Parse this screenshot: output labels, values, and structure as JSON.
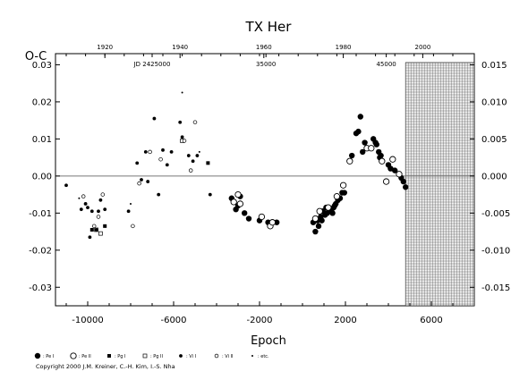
{
  "chart_data": {
    "type": "scatter",
    "title": "TX Her",
    "xlabel": "Epoch",
    "ylabel": "O-C",
    "xlim": [
      -11500,
      8000
    ],
    "ylim": [
      -0.035,
      0.033
    ],
    "right_ylim": [
      -0.0175,
      0.0165
    ],
    "x_ticks": [
      -10000,
      -6000,
      -2000,
      2000,
      6000
    ],
    "x_tick_labels": [
      "-10000",
      "-6000",
      "-2000",
      "2000",
      "6000"
    ],
    "y_ticks": [
      -0.03,
      -0.02,
      -0.01,
      0.0,
      0.01,
      0.02,
      0.03
    ],
    "y_tick_labels": [
      "-0.03",
      "-0.02",
      "-0.01",
      "0.00",
      "0.01",
      "0.02",
      "0.03"
    ],
    "right_ticks": [
      -0.015,
      -0.01,
      -0.005,
      0.0,
      0.005,
      0.01,
      0.015
    ],
    "right_tick_labels": [
      "-0.015",
      "-0.010",
      "-0.005",
      "0.000",
      "0.005",
      "0.010",
      "0.015"
    ],
    "year_ticks": [
      -9200,
      -5700,
      -1800,
      1900,
      5600
    ],
    "year_labels": [
      "1920",
      "1940",
      "1960",
      "1980",
      "2000"
    ],
    "jd_ticks": [
      -7000,
      -1700,
      3900
    ],
    "jd_labels": [
      "JD 2425000",
      "35000",
      "45000"
    ],
    "future_region": [
      4800,
      8000
    ],
    "zero_line": true,
    "series": [
      {
        "name": ": Pe I",
        "marker": "filled-circle-large",
        "points": [
          [
            -3300,
            -0.006
          ],
          [
            -3100,
            -0.009
          ],
          [
            -2900,
            -0.0055
          ],
          [
            -2700,
            -0.01
          ],
          [
            -2500,
            -0.0115
          ],
          [
            -3000,
            -0.008
          ],
          [
            -2000,
            -0.012
          ],
          [
            -1600,
            -0.0125
          ],
          [
            -1200,
            -0.0125
          ],
          [
            500,
            -0.0125
          ],
          [
            600,
            -0.015
          ],
          [
            750,
            -0.0135
          ],
          [
            850,
            -0.011
          ],
          [
            950,
            -0.0095
          ],
          [
            1050,
            -0.0105
          ],
          [
            1150,
            -0.01
          ],
          [
            1250,
            -0.0095
          ],
          [
            1350,
            -0.009
          ],
          [
            1450,
            -0.0085
          ],
          [
            1550,
            -0.0075
          ],
          [
            1650,
            -0.0065
          ],
          [
            1750,
            -0.006
          ],
          [
            1850,
            -0.0045
          ],
          [
            1950,
            -0.0045
          ],
          [
            900,
            -0.012
          ],
          [
            1100,
            -0.0085
          ],
          [
            1300,
            -0.0095
          ],
          [
            1500,
            -0.008
          ],
          [
            700,
            -0.012
          ],
          [
            1400,
            -0.01
          ],
          [
            2300,
            0.0055
          ],
          [
            2500,
            0.0115
          ],
          [
            2600,
            0.012
          ],
          [
            2700,
            0.016
          ],
          [
            2900,
            0.009
          ],
          [
            2800,
            0.0065
          ],
          [
            3300,
            0.01
          ],
          [
            3400,
            0.009
          ],
          [
            3450,
            0.0085
          ],
          [
            3550,
            0.0065
          ],
          [
            3650,
            0.0055
          ],
          [
            3600,
            0.005
          ],
          [
            4000,
            0.003
          ],
          [
            4100,
            0.002
          ],
          [
            4300,
            0.0015
          ],
          [
            4600,
            -0.0005
          ],
          [
            4700,
            -0.0015
          ],
          [
            4800,
            -0.003
          ]
        ]
      },
      {
        "name": ": Pe II",
        "marker": "open-circle-large",
        "points": [
          [
            -3200,
            -0.007
          ],
          [
            -3000,
            -0.005
          ],
          [
            -2900,
            -0.0075
          ],
          [
            -1900,
            -0.011
          ],
          [
            -1500,
            -0.0135
          ],
          [
            -1400,
            -0.0125
          ],
          [
            600,
            -0.0115
          ],
          [
            800,
            -0.0095
          ],
          [
            1200,
            -0.0085
          ],
          [
            1600,
            -0.0055
          ],
          [
            1900,
            -0.0025
          ],
          [
            2200,
            0.004
          ],
          [
            3000,
            0.0075
          ],
          [
            3200,
            0.0075
          ],
          [
            3700,
            0.004
          ],
          [
            3900,
            -0.0015
          ],
          [
            4200,
            0.0045
          ],
          [
            4500,
            0.0005
          ]
        ]
      },
      {
        "name": ": Pg I",
        "marker": "filled-square",
        "points": [
          [
            -9800,
            -0.0145
          ],
          [
            -9200,
            -0.0135
          ],
          [
            -4400,
            0.0035
          ]
        ]
      },
      {
        "name": ": Pg II",
        "marker": "open-square",
        "points": [
          [
            -9400,
            -0.0155
          ],
          [
            -9600,
            -0.0145
          ],
          [
            -5600,
            0.0095
          ]
        ]
      },
      {
        "name": ": Vi I",
        "marker": "filled-circle-small",
        "points": [
          [
            -11000,
            -0.0025
          ],
          [
            -10300,
            -0.009
          ],
          [
            -10100,
            -0.0075
          ],
          [
            -10000,
            -0.0085
          ],
          [
            -9800,
            -0.0095
          ],
          [
            -9500,
            -0.0095
          ],
          [
            -9900,
            -0.0165
          ],
          [
            -9600,
            -0.0145
          ],
          [
            -9400,
            -0.0065
          ],
          [
            -9200,
            -0.009
          ],
          [
            -8100,
            -0.0095
          ],
          [
            -7700,
            0.0035
          ],
          [
            -7500,
            -0.001
          ],
          [
            -7300,
            0.0065
          ],
          [
            -7200,
            -0.0015
          ],
          [
            -6900,
            0.0155
          ],
          [
            -6700,
            -0.005
          ],
          [
            -6500,
            0.007
          ],
          [
            -6300,
            0.003
          ],
          [
            -6100,
            0.0065
          ],
          [
            -5700,
            0.0145
          ],
          [
            -5600,
            0.0105
          ],
          [
            -5300,
            0.0055
          ],
          [
            -5100,
            0.004
          ],
          [
            -4900,
            0.0055
          ],
          [
            -4300,
            -0.005
          ]
        ]
      },
      {
        "name": ": Vi II",
        "marker": "open-circle-small",
        "points": [
          [
            -10200,
            -0.0055
          ],
          [
            -9700,
            -0.0135
          ],
          [
            -9500,
            -0.011
          ],
          [
            -9300,
            -0.005
          ],
          [
            -7900,
            -0.0135
          ],
          [
            -7600,
            -0.002
          ],
          [
            -7100,
            0.0065
          ],
          [
            -6600,
            0.0045
          ],
          [
            -5500,
            0.0095
          ],
          [
            -5200,
            0.0015
          ],
          [
            -5000,
            0.0145
          ]
        ]
      },
      {
        "name": ": etc.",
        "marker": "dot",
        "points": [
          [
            -5600,
            0.0225
          ],
          [
            -10400,
            -0.006
          ],
          [
            -8000,
            -0.0075
          ],
          [
            -4800,
            0.0065
          ]
        ]
      }
    ]
  },
  "copyright": "Copyright 2000 J.M. Kreiner, C.-H. Kim, I.-S. Nha"
}
